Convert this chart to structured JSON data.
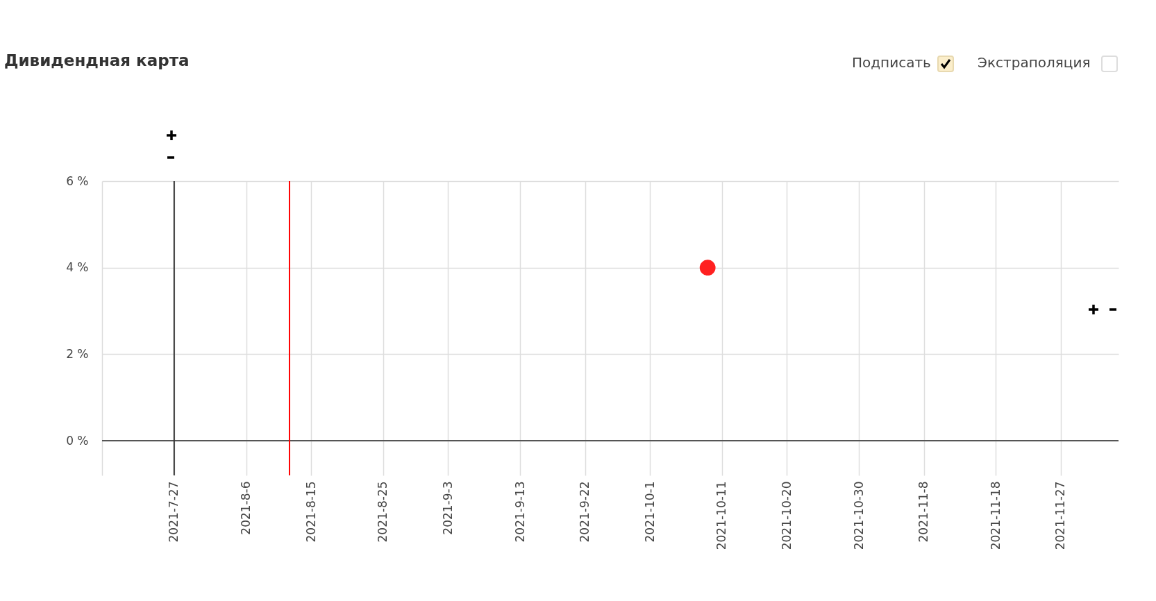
{
  "chart_data": {
    "type": "scatter",
    "title": "Дивидендная карта",
    "annotations": [
      "Подписать",
      "Экстраполяция"
    ],
    "x": [
      "2021-10-09"
    ],
    "series": [
      {
        "color": "#ff2020",
        "values": [
          4
        ]
      }
    ],
    "marker": "circle",
    "grid": true,
    "xlim": [
      "2021-07-17",
      "2021-12-05"
    ],
    "xticks": [
      {
        "value": "2021-07-27",
        "label": "2021-7-27"
      },
      {
        "value": "2021-08-06",
        "label": "2021-8-6"
      },
      {
        "value": "2021-08-15",
        "label": "2021-8-15"
      },
      {
        "value": "2021-08-25",
        "label": "2021-8-25"
      },
      {
        "value": "2021-09-03",
        "label": "2021-9-3"
      },
      {
        "value": "2021-09-13",
        "label": "2021-9-13"
      },
      {
        "value": "2021-09-22",
        "label": "2021-9-22"
      },
      {
        "value": "2021-10-01",
        "label": "2021-10-1"
      },
      {
        "value": "2021-10-11",
        "label": "2021-10-11"
      },
      {
        "value": "2021-10-20",
        "label": "2021-10-20"
      },
      {
        "value": "2021-10-30",
        "label": "2021-10-30"
      },
      {
        "value": "2021-11-08",
        "label": "2021-11-8"
      },
      {
        "value": "2021-11-18",
        "label": "2021-11-18"
      },
      {
        "value": "2021-11-27",
        "label": "2021-11-27"
      }
    ],
    "ylim": [
      -0.8,
      6
    ],
    "yticks": [
      {
        "value": 0,
        "label": "0 %"
      },
      {
        "value": 2,
        "label": "2 %"
      },
      {
        "value": 4,
        "label": "4 %"
      },
      {
        "value": 6,
        "label": "6 %"
      }
    ],
    "ref_lines": [
      {
        "axis": "y",
        "value": 0,
        "color": "#555555"
      },
      {
        "axis": "x",
        "value": "2021-07-27",
        "color": "#333333"
      },
      {
        "axis": "x",
        "value": "2021-08-12",
        "color": "#ff0000"
      }
    ]
  }
}
